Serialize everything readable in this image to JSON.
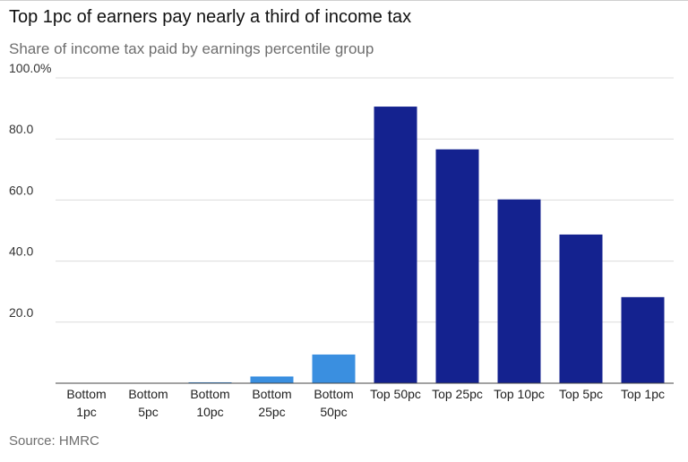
{
  "chart_data": {
    "type": "bar",
    "title": "Top 1pc of earners pay nearly a third of income tax",
    "subtitle": "Share of income tax paid by earnings percentile group",
    "source": "Source: HMRC",
    "categories": [
      [
        "Bottom",
        "1pc"
      ],
      [
        "Bottom",
        "5pc"
      ],
      [
        "Bottom",
        "10pc"
      ],
      [
        "Bottom",
        "25pc"
      ],
      [
        "Bottom",
        "50pc"
      ],
      [
        "Top 50pc"
      ],
      [
        "Top 25pc"
      ],
      [
        "Top 10pc"
      ],
      [
        "Top 5pc"
      ],
      [
        "Top 1pc"
      ]
    ],
    "values": [
      0.0,
      0.05,
      0.3,
      2.2,
      9.4,
      90.6,
      76.6,
      60.2,
      48.7,
      28.2
    ],
    "colors": [
      "#3a8fe0",
      "#3a8fe0",
      "#3a8fe0",
      "#3a8fe0",
      "#3a8fe0",
      "#14228f",
      "#14228f",
      "#14228f",
      "#14228f",
      "#14228f"
    ],
    "ylim": [
      0,
      100
    ],
    "yticks": [
      {
        "value": 20,
        "label": "20.0"
      },
      {
        "value": 40,
        "label": "40.0"
      },
      {
        "value": 60,
        "label": "60.0"
      },
      {
        "value": 80,
        "label": "80.0"
      },
      {
        "value": 100,
        "label": "100.0%"
      }
    ],
    "grid": true,
    "legend": "none"
  }
}
